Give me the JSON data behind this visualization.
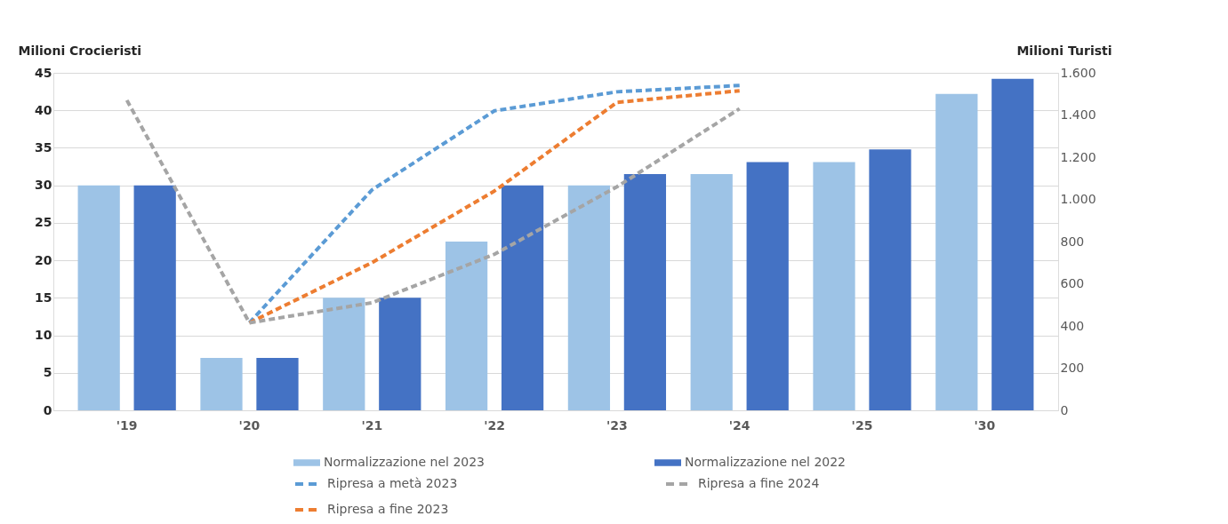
{
  "chart_data": {
    "type": "bar",
    "categories": [
      "'19",
      "'20",
      "'21",
      "'22",
      "'23",
      "'24",
      "'25",
      "'30"
    ],
    "ylabel": "Milioni Crocieristi",
    "y2label": "Milioni Turisti",
    "ylim": [
      0,
      45
    ],
    "yticks": [
      0,
      5,
      10,
      15,
      20,
      25,
      30,
      35,
      40,
      45
    ],
    "y2lim": [
      0,
      1600
    ],
    "y2ticks": [
      0,
      {
        "value": 200,
        "label": "200"
      },
      {
        "value": 400,
        "label": "400"
      },
      {
        "value": 600,
        "label": "600"
      },
      {
        "value": 800,
        "label": "800"
      },
      {
        "value": 1000,
        "label": "1.000"
      },
      {
        "value": 1200,
        "label": "1.200"
      },
      {
        "value": 1400,
        "label": "1.400"
      },
      {
        "value": 1600,
        "label": "1.600"
      }
    ],
    "grid": "y",
    "legend": "bottom",
    "series": [
      {
        "name": "Normalizzazione nel 2023",
        "color": "#9dc3e6",
        "values": [
          30,
          7,
          15,
          22.5,
          30,
          31.5,
          33.1,
          42.2
        ]
      },
      {
        "name": "Normalizzazione nel 2022",
        "color": "#4472c4",
        "values": [
          30,
          7,
          15,
          30,
          31.5,
          33.1,
          34.8,
          44.2
        ]
      },
      {
        "name": "Ripresa a metà 2023",
        "type": "line",
        "axis": "y2",
        "line_style": "dashed",
        "color": "#5b9bd5",
        "values": [
          null,
          415,
          1045,
          1420,
          1510,
          1540,
          null,
          null
        ]
      },
      {
        "name": "Ripresa a fine 2023",
        "type": "line",
        "axis": "y2",
        "line_style": "dashed",
        "color": "#ed7d31",
        "values": [
          null,
          415,
          700,
          1040,
          1460,
          1515,
          null,
          null
        ]
      },
      {
        "name": "Ripresa a fine 2024",
        "type": "line",
        "axis": "y2",
        "line_style": "dashed",
        "color": "#a5a5a5",
        "values": [
          1470,
          415,
          510,
          740,
          1060,
          1430,
          null,
          null
        ]
      }
    ]
  }
}
